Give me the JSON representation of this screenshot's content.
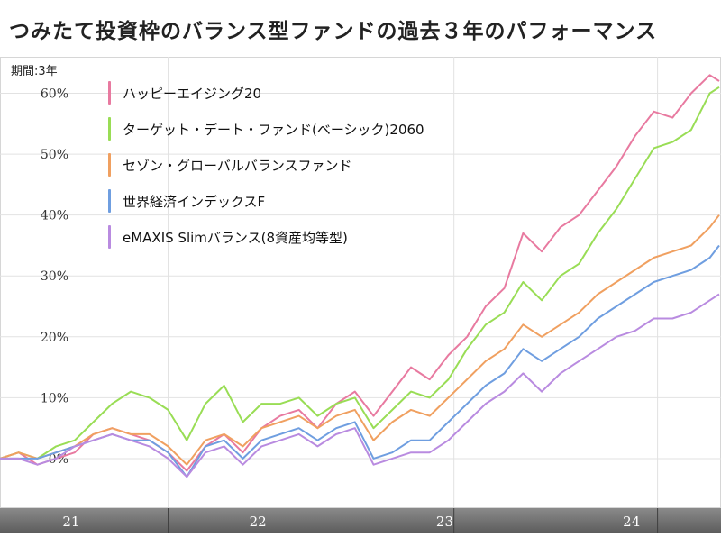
{
  "title": "つみたて投資枠のバランス型ファンドの過去３年のパフォーマンス",
  "period_label": "期間:3年",
  "chart_data": {
    "type": "line",
    "y_unit": "%",
    "ylim": [
      -8,
      66
    ],
    "y_ticks": [
      0,
      10,
      20,
      30,
      40,
      50,
      60
    ],
    "y_tick_labels": [
      "0%",
      "10%",
      "20%",
      "30%",
      "40%",
      "50%",
      "60%"
    ],
    "x_tick_labels": [
      "21",
      "22",
      "23",
      "24"
    ],
    "x_tick_positions": [
      0.4,
      1.4,
      2.4,
      3.4
    ],
    "x_range": [
      0,
      3.85
    ],
    "grid": true,
    "legend_position": "top-left",
    "series": [
      {
        "name": "ハッピーエイジング20",
        "color": "#e87aa0",
        "points": [
          [
            0.0,
            0
          ],
          [
            0.1,
            1
          ],
          [
            0.2,
            -1
          ],
          [
            0.3,
            0
          ],
          [
            0.4,
            1
          ],
          [
            0.5,
            4
          ],
          [
            0.6,
            5
          ],
          [
            0.7,
            4
          ],
          [
            0.8,
            3
          ],
          [
            0.9,
            1
          ],
          [
            1.0,
            -2
          ],
          [
            1.1,
            2
          ],
          [
            1.2,
            4
          ],
          [
            1.3,
            1
          ],
          [
            1.4,
            5
          ],
          [
            1.5,
            7
          ],
          [
            1.6,
            8
          ],
          [
            1.7,
            5
          ],
          [
            1.8,
            9
          ],
          [
            1.9,
            11
          ],
          [
            2.0,
            7
          ],
          [
            2.1,
            11
          ],
          [
            2.2,
            15
          ],
          [
            2.3,
            13
          ],
          [
            2.4,
            17
          ],
          [
            2.5,
            20
          ],
          [
            2.6,
            25
          ],
          [
            2.7,
            28
          ],
          [
            2.8,
            37
          ],
          [
            2.9,
            34
          ],
          [
            3.0,
            38
          ],
          [
            3.1,
            40
          ],
          [
            3.2,
            44
          ],
          [
            3.3,
            48
          ],
          [
            3.4,
            53
          ],
          [
            3.5,
            57
          ],
          [
            3.6,
            56
          ],
          [
            3.7,
            60
          ],
          [
            3.8,
            63
          ],
          [
            3.85,
            62
          ]
        ]
      },
      {
        "name": "ターゲット・デート・ファンド(ベーシック)2060",
        "color": "#99dd55",
        "points": [
          [
            0.0,
            0
          ],
          [
            0.1,
            1
          ],
          [
            0.2,
            0
          ],
          [
            0.3,
            2
          ],
          [
            0.4,
            3
          ],
          [
            0.5,
            6
          ],
          [
            0.6,
            9
          ],
          [
            0.7,
            11
          ],
          [
            0.8,
            10
          ],
          [
            0.9,
            8
          ],
          [
            1.0,
            3
          ],
          [
            1.1,
            9
          ],
          [
            1.2,
            12
          ],
          [
            1.3,
            6
          ],
          [
            1.4,
            9
          ],
          [
            1.5,
            9
          ],
          [
            1.6,
            10
          ],
          [
            1.7,
            7
          ],
          [
            1.8,
            9
          ],
          [
            1.9,
            10
          ],
          [
            2.0,
            5
          ],
          [
            2.1,
            8
          ],
          [
            2.2,
            11
          ],
          [
            2.3,
            10
          ],
          [
            2.4,
            13
          ],
          [
            2.5,
            18
          ],
          [
            2.6,
            22
          ],
          [
            2.7,
            24
          ],
          [
            2.8,
            29
          ],
          [
            2.9,
            26
          ],
          [
            3.0,
            30
          ],
          [
            3.1,
            32
          ],
          [
            3.2,
            37
          ],
          [
            3.3,
            41
          ],
          [
            3.4,
            46
          ],
          [
            3.5,
            51
          ],
          [
            3.6,
            52
          ],
          [
            3.7,
            54
          ],
          [
            3.8,
            60
          ],
          [
            3.85,
            61
          ]
        ]
      },
      {
        "name": "セゾン・グローバルバランスファンド",
        "color": "#f0a060",
        "points": [
          [
            0.0,
            0
          ],
          [
            0.1,
            1
          ],
          [
            0.2,
            0
          ],
          [
            0.3,
            1
          ],
          [
            0.4,
            2
          ],
          [
            0.5,
            4
          ],
          [
            0.6,
            5
          ],
          [
            0.7,
            4
          ],
          [
            0.8,
            4
          ],
          [
            0.9,
            2
          ],
          [
            1.0,
            -1
          ],
          [
            1.1,
            3
          ],
          [
            1.2,
            4
          ],
          [
            1.3,
            2
          ],
          [
            1.4,
            5
          ],
          [
            1.5,
            6
          ],
          [
            1.6,
            7
          ],
          [
            1.7,
            5
          ],
          [
            1.8,
            7
          ],
          [
            1.9,
            8
          ],
          [
            2.0,
            3
          ],
          [
            2.1,
            6
          ],
          [
            2.2,
            8
          ],
          [
            2.3,
            7
          ],
          [
            2.4,
            10
          ],
          [
            2.5,
            13
          ],
          [
            2.6,
            16
          ],
          [
            2.7,
            18
          ],
          [
            2.8,
            22
          ],
          [
            2.9,
            20
          ],
          [
            3.0,
            22
          ],
          [
            3.1,
            24
          ],
          [
            3.2,
            27
          ],
          [
            3.3,
            29
          ],
          [
            3.4,
            31
          ],
          [
            3.5,
            33
          ],
          [
            3.6,
            34
          ],
          [
            3.7,
            35
          ],
          [
            3.8,
            38
          ],
          [
            3.85,
            40
          ]
        ]
      },
      {
        "name": "世界経済インデックスF",
        "color": "#6f9ee0",
        "points": [
          [
            0.0,
            0
          ],
          [
            0.1,
            0
          ],
          [
            0.2,
            0
          ],
          [
            0.3,
            1
          ],
          [
            0.4,
            2
          ],
          [
            0.5,
            3
          ],
          [
            0.6,
            4
          ],
          [
            0.7,
            3
          ],
          [
            0.8,
            3
          ],
          [
            0.9,
            1
          ],
          [
            1.0,
            -3
          ],
          [
            1.1,
            2
          ],
          [
            1.2,
            3
          ],
          [
            1.3,
            0
          ],
          [
            1.4,
            3
          ],
          [
            1.5,
            4
          ],
          [
            1.6,
            5
          ],
          [
            1.7,
            3
          ],
          [
            1.8,
            5
          ],
          [
            1.9,
            6
          ],
          [
            2.0,
            0
          ],
          [
            2.1,
            1
          ],
          [
            2.2,
            3
          ],
          [
            2.3,
            3
          ],
          [
            2.4,
            6
          ],
          [
            2.5,
            9
          ],
          [
            2.6,
            12
          ],
          [
            2.7,
            14
          ],
          [
            2.8,
            18
          ],
          [
            2.9,
            16
          ],
          [
            3.0,
            18
          ],
          [
            3.1,
            20
          ],
          [
            3.2,
            23
          ],
          [
            3.3,
            25
          ],
          [
            3.4,
            27
          ],
          [
            3.5,
            29
          ],
          [
            3.6,
            30
          ],
          [
            3.7,
            31
          ],
          [
            3.8,
            33
          ],
          [
            3.85,
            35
          ]
        ]
      },
      {
        "name": "eMAXIS Slimバランス(8資産均等型)",
        "color": "#b98be0",
        "points": [
          [
            0.0,
            0
          ],
          [
            0.1,
            0
          ],
          [
            0.2,
            -1
          ],
          [
            0.3,
            0
          ],
          [
            0.4,
            2
          ],
          [
            0.5,
            3
          ],
          [
            0.6,
            4
          ],
          [
            0.7,
            3
          ],
          [
            0.8,
            2
          ],
          [
            0.9,
            0
          ],
          [
            1.0,
            -3
          ],
          [
            1.1,
            1
          ],
          [
            1.2,
            2
          ],
          [
            1.3,
            -1
          ],
          [
            1.4,
            2
          ],
          [
            1.5,
            3
          ],
          [
            1.6,
            4
          ],
          [
            1.7,
            2
          ],
          [
            1.8,
            4
          ],
          [
            1.9,
            5
          ],
          [
            2.0,
            -1
          ],
          [
            2.1,
            0
          ],
          [
            2.2,
            1
          ],
          [
            2.3,
            1
          ],
          [
            2.4,
            3
          ],
          [
            2.5,
            6
          ],
          [
            2.6,
            9
          ],
          [
            2.7,
            11
          ],
          [
            2.8,
            14
          ],
          [
            2.9,
            11
          ],
          [
            3.0,
            14
          ],
          [
            3.1,
            16
          ],
          [
            3.2,
            18
          ],
          [
            3.3,
            20
          ],
          [
            3.4,
            21
          ],
          [
            3.5,
            23
          ],
          [
            3.6,
            23
          ],
          [
            3.7,
            24
          ],
          [
            3.8,
            26
          ],
          [
            3.85,
            27
          ]
        ]
      }
    ]
  }
}
